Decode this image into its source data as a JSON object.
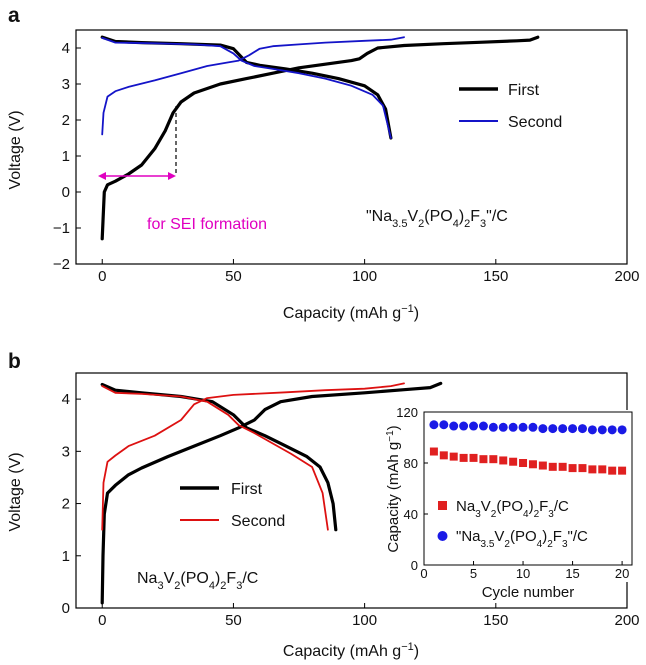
{
  "chart_data": [
    {
      "panel": "a",
      "type": "line",
      "xlabel": "Capacity (mAh g⁻¹)",
      "ylabel": "Voltage (V)",
      "xlim": [
        -10,
        200
      ],
      "ylim": [
        -2,
        4.5
      ],
      "x_ticks": [
        "0",
        "50",
        "100",
        "150",
        "200"
      ],
      "y_ticks": [
        "−2",
        "−1",
        "0",
        "1",
        "2",
        "3",
        "4"
      ],
      "legend_position": "top-right",
      "annotation": "for SEI formation",
      "annotation_range": [
        0,
        30
      ],
      "annotation_color": "#e000c0",
      "label": "\"Na3.5V2(PO4)2F3\"/C",
      "series": [
        {
          "name": "First",
          "color": "#000000",
          "segments": [
            [
              [
                0,
                -1.3
              ],
              [
                0.3,
                -0.8
              ],
              [
                0.8,
                0.0
              ],
              [
                2,
                0.2
              ],
              [
                5,
                0.3
              ],
              [
                10,
                0.5
              ],
              [
                15,
                0.75
              ],
              [
                20,
                1.2
              ],
              [
                24,
                1.7
              ],
              [
                27,
                2.2
              ],
              [
                30,
                2.5
              ],
              [
                35,
                2.75
              ],
              [
                45,
                3.0
              ],
              [
                55,
                3.15
              ],
              [
                65,
                3.3
              ],
              [
                75,
                3.45
              ],
              [
                85,
                3.55
              ],
              [
                95,
                3.65
              ],
              [
                98,
                3.7
              ],
              [
                101,
                3.85
              ],
              [
                105,
                4.0
              ],
              [
                115,
                4.07
              ],
              [
                130,
                4.12
              ],
              [
                145,
                4.16
              ],
              [
                158,
                4.2
              ],
              [
                163,
                4.22
              ],
              [
                166,
                4.3
              ]
            ],
            [
              [
                0,
                4.3
              ],
              [
                5,
                4.18
              ],
              [
                15,
                4.15
              ],
              [
                30,
                4.12
              ],
              [
                45,
                4.08
              ],
              [
                50,
                3.98
              ],
              [
                55,
                3.6
              ],
              [
                60,
                3.52
              ],
              [
                70,
                3.42
              ],
              [
                80,
                3.3
              ],
              [
                90,
                3.15
              ],
              [
                100,
                2.95
              ],
              [
                105,
                2.7
              ],
              [
                108,
                2.3
              ],
              [
                110,
                1.5
              ]
            ]
          ]
        },
        {
          "name": "Second",
          "color": "#1414c8",
          "segments": [
            [
              [
                0,
                1.6
              ],
              [
                0.5,
                2.2
              ],
              [
                2,
                2.65
              ],
              [
                5,
                2.8
              ],
              [
                10,
                2.92
              ],
              [
                20,
                3.1
              ],
              [
                30,
                3.3
              ],
              [
                40,
                3.5
              ],
              [
                48,
                3.6
              ],
              [
                52,
                3.65
              ],
              [
                56,
                3.8
              ],
              [
                60,
                3.98
              ],
              [
                65,
                4.05
              ],
              [
                75,
                4.1
              ],
              [
                85,
                4.15
              ],
              [
                100,
                4.2
              ],
              [
                110,
                4.23
              ],
              [
                115,
                4.3
              ]
            ],
            [
              [
                0,
                4.28
              ],
              [
                5,
                4.15
              ],
              [
                20,
                4.13
              ],
              [
                35,
                4.1
              ],
              [
                45,
                4.05
              ],
              [
                50,
                3.85
              ],
              [
                53,
                3.65
              ],
              [
                58,
                3.5
              ],
              [
                65,
                3.42
              ],
              [
                75,
                3.3
              ],
              [
                85,
                3.15
              ],
              [
                95,
                2.95
              ],
              [
                103,
                2.7
              ],
              [
                107,
                2.4
              ],
              [
                110,
                1.5
              ]
            ]
          ]
        }
      ]
    },
    {
      "panel": "b",
      "type": "line",
      "xlabel": "Capacity (mAh g⁻¹)",
      "ylabel": "Voltage (V)",
      "xlim": [
        -10,
        200
      ],
      "ylim": [
        0,
        4.5
      ],
      "x_ticks": [
        "0",
        "50",
        "100",
        "150",
        "200"
      ],
      "y_ticks": [
        "0",
        "1",
        "2",
        "3",
        "4"
      ],
      "legend_position": "center",
      "label": "Na3V2(PO4)2F3/C",
      "series": [
        {
          "name": "First",
          "color": "#000000",
          "segments": [
            [
              [
                0,
                0.1
              ],
              [
                0.3,
                1.0
              ],
              [
                0.8,
                1.8
              ],
              [
                2,
                2.2
              ],
              [
                5,
                2.35
              ],
              [
                10,
                2.55
              ],
              [
                15,
                2.68
              ],
              [
                25,
                2.9
              ],
              [
                35,
                3.1
              ],
              [
                45,
                3.3
              ],
              [
                52,
                3.45
              ],
              [
                58,
                3.6
              ],
              [
                62,
                3.8
              ],
              [
                68,
                3.95
              ],
              [
                80,
                4.05
              ],
              [
                100,
                4.12
              ],
              [
                115,
                4.18
              ],
              [
                125,
                4.22
              ],
              [
                129,
                4.3
              ]
            ],
            [
              [
                0,
                4.28
              ],
              [
                5,
                4.17
              ],
              [
                15,
                4.12
              ],
              [
                30,
                4.05
              ],
              [
                42,
                3.95
              ],
              [
                50,
                3.7
              ],
              [
                55,
                3.45
              ],
              [
                62,
                3.3
              ],
              [
                70,
                3.1
              ],
              [
                78,
                2.9
              ],
              [
                83,
                2.7
              ],
              [
                86,
                2.4
              ],
              [
                88,
                2.0
              ],
              [
                89,
                1.5
              ]
            ]
          ]
        },
        {
          "name": "Second",
          "color": "#dd1111",
          "segments": [
            [
              [
                0,
                1.5
              ],
              [
                0.5,
                2.4
              ],
              [
                2,
                2.8
              ],
              [
                5,
                2.92
              ],
              [
                10,
                3.1
              ],
              [
                20,
                3.3
              ],
              [
                30,
                3.6
              ],
              [
                35,
                3.9
              ],
              [
                40,
                4.02
              ],
              [
                50,
                4.08
              ],
              [
                70,
                4.13
              ],
              [
                85,
                4.17
              ],
              [
                100,
                4.2
              ],
              [
                110,
                4.25
              ],
              [
                115,
                4.3
              ]
            ],
            [
              [
                0,
                4.25
              ],
              [
                5,
                4.12
              ],
              [
                15,
                4.1
              ],
              [
                30,
                4.05
              ],
              [
                40,
                3.95
              ],
              [
                48,
                3.7
              ],
              [
                52,
                3.5
              ],
              [
                58,
                3.35
              ],
              [
                65,
                3.15
              ],
              [
                72,
                2.95
              ],
              [
                80,
                2.7
              ],
              [
                84,
                2.2
              ],
              [
                86,
                1.5
              ]
            ]
          ]
        }
      ],
      "inset": {
        "type": "scatter",
        "xlabel": "Cycle number",
        "ylabel": "Capacity (mAh g⁻¹)",
        "xlim": [
          0,
          21
        ],
        "ylim": [
          0,
          120
        ],
        "x_ticks": [
          "0",
          "5",
          "10",
          "15",
          "20"
        ],
        "y_ticks": [
          "0",
          "40",
          "80",
          "120"
        ],
        "legend_position": "bottom",
        "series": [
          {
            "name": "Na3V2(PO4)2F3/C",
            "marker": "square",
            "color": "#e02020",
            "x": [
              1,
              2,
              3,
              4,
              5,
              6,
              7,
              8,
              9,
              10,
              11,
              12,
              13,
              14,
              15,
              16,
              17,
              18,
              19,
              20
            ],
            "y": [
              89,
              86,
              85,
              84,
              84,
              83,
              83,
              82,
              81,
              80,
              79,
              78,
              77,
              77,
              76,
              76,
              75,
              75,
              74,
              74
            ]
          },
          {
            "name": "\"Na3.5V2(PO4)2F3\"/C",
            "marker": "circle",
            "color": "#1a1ae6",
            "x": [
              1,
              2,
              3,
              4,
              5,
              6,
              7,
              8,
              9,
              10,
              11,
              12,
              13,
              14,
              15,
              16,
              17,
              18,
              19,
              20
            ],
            "y": [
              110,
              110,
              109,
              109,
              109,
              109,
              108,
              108,
              108,
              108,
              108,
              107,
              107,
              107,
              107,
              107,
              106,
              106,
              106,
              106
            ]
          }
        ]
      }
    }
  ],
  "labels": {
    "panel_a": "a",
    "panel_b": "b",
    "a_series1": "First",
    "a_series2": "Second",
    "b_series1": "First",
    "b_series2": "Second",
    "xlabel_main": "Capacity (mAh g",
    "xlabel_exp": "−1",
    "xlabel_close": ")",
    "ylabel_main": "Voltage (V)",
    "sei": "for SEI formation",
    "inset_xlabel": "Cycle number",
    "inset_ylabel_main": "Capacity (mAh g",
    "inset_ylabel_exp": "−1",
    "inset_ylabel_close": ")"
  }
}
